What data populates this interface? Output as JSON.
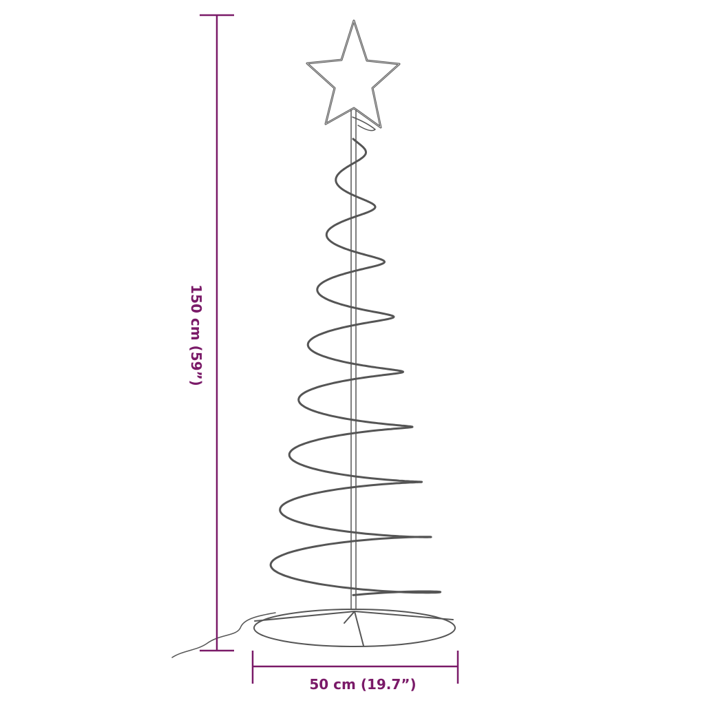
{
  "dimensions": {
    "height_label": "150 cm (59”)",
    "width_label": "50 cm (19.7”)"
  },
  "colors": {
    "dimension": "#7a1a68",
    "line_art": "#444444"
  },
  "illustration": "spiral-christmas-tree-with-star"
}
